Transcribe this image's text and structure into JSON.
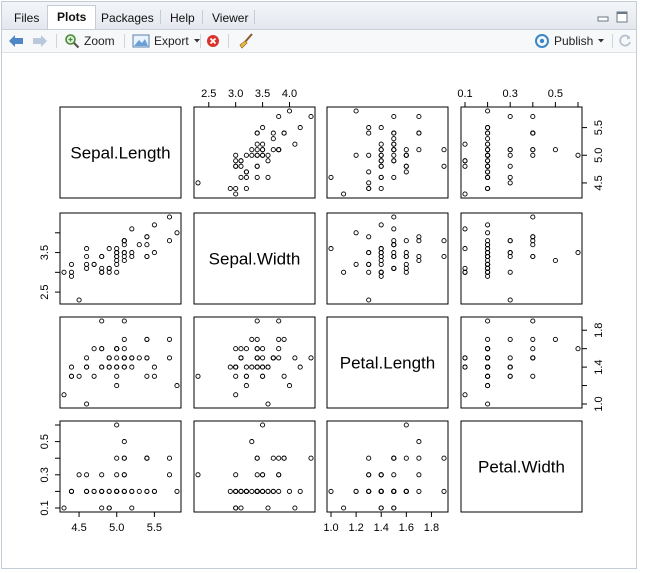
{
  "tabs": [
    {
      "label": "Files",
      "active": false
    },
    {
      "label": "Plots",
      "active": true
    },
    {
      "label": "Packages",
      "active": false
    },
    {
      "label": "Help",
      "active": false
    },
    {
      "label": "Viewer",
      "active": false
    }
  ],
  "toolbar": {
    "zoom_label": "Zoom",
    "export_label": "Export",
    "publish_label": "Publish"
  },
  "chart_data": {
    "type": "scatter",
    "subtype": "pairs-matrix",
    "variables": [
      "Sepal.Length",
      "Sepal.Width",
      "Petal.Length",
      "Petal.Width"
    ],
    "ranges": {
      "Sepal.Length": [
        4.3,
        5.8
      ],
      "Sepal.Width": [
        2.3,
        4.4
      ],
      "Petal.Length": [
        1.0,
        1.9
      ],
      "Petal.Width": [
        0.1,
        0.6
      ]
    },
    "ticks": {
      "Sepal.Length": {
        "values": [
          4.5,
          5.0,
          5.5
        ],
        "labels": [
          "4.5",
          "5.0",
          "5.5"
        ]
      },
      "Sepal.Width": {
        "values": [
          2.5,
          3.0,
          3.5,
          4.0
        ],
        "labels_top": [
          "2.5",
          "3.0",
          "3.5",
          "4.0"
        ],
        "labels_left": [
          "2.5",
          "3.5"
        ]
      },
      "Petal.Length": {
        "values": [
          1.0,
          1.2,
          1.4,
          1.6,
          1.8
        ],
        "labels_bottom": [
          "1.0",
          "1.2",
          "1.4",
          "1.6",
          "1.8"
        ],
        "labels_right": [
          "1.0",
          "1.4",
          "1.8"
        ]
      },
      "Petal.Width": {
        "values": [
          0.1,
          0.2,
          0.3,
          0.4,
          0.5,
          0.6
        ],
        "labels_top": [
          "0.1",
          "0.3",
          "0.5"
        ],
        "labels_left": [
          "0.1",
          "0.3",
          "0.5"
        ]
      }
    },
    "grid": false,
    "observations": [
      [
        5.1,
        3.5,
        1.4,
        0.2
      ],
      [
        4.9,
        3.0,
        1.4,
        0.2
      ],
      [
        4.7,
        3.2,
        1.3,
        0.2
      ],
      [
        4.6,
        3.1,
        1.5,
        0.2
      ],
      [
        5.0,
        3.6,
        1.4,
        0.2
      ],
      [
        5.4,
        3.9,
        1.7,
        0.4
      ],
      [
        4.6,
        3.4,
        1.4,
        0.3
      ],
      [
        5.0,
        3.4,
        1.5,
        0.2
      ],
      [
        4.4,
        2.9,
        1.4,
        0.2
      ],
      [
        4.9,
        3.1,
        1.5,
        0.1
      ],
      [
        5.4,
        3.7,
        1.5,
        0.2
      ],
      [
        4.8,
        3.4,
        1.6,
        0.2
      ],
      [
        4.8,
        3.0,
        1.4,
        0.1
      ],
      [
        4.3,
        3.0,
        1.1,
        0.1
      ],
      [
        5.8,
        4.0,
        1.2,
        0.2
      ],
      [
        5.7,
        4.4,
        1.5,
        0.4
      ],
      [
        5.4,
        3.9,
        1.3,
        0.4
      ],
      [
        5.1,
        3.5,
        1.4,
        0.3
      ],
      [
        5.7,
        3.8,
        1.7,
        0.3
      ],
      [
        5.1,
        3.8,
        1.5,
        0.3
      ],
      [
        5.4,
        3.4,
        1.7,
        0.2
      ],
      [
        5.1,
        3.7,
        1.5,
        0.4
      ],
      [
        4.6,
        3.6,
        1.0,
        0.2
      ],
      [
        5.1,
        3.3,
        1.7,
        0.5
      ],
      [
        4.8,
        3.4,
        1.9,
        0.2
      ],
      [
        5.0,
        3.0,
        1.6,
        0.2
      ],
      [
        5.0,
        3.4,
        1.6,
        0.4
      ],
      [
        5.2,
        3.5,
        1.5,
        0.2
      ],
      [
        5.2,
        3.4,
        1.4,
        0.2
      ],
      [
        4.7,
        3.2,
        1.6,
        0.2
      ],
      [
        4.8,
        3.1,
        1.6,
        0.2
      ],
      [
        5.4,
        3.4,
        1.5,
        0.4
      ],
      [
        5.2,
        4.1,
        1.5,
        0.1
      ],
      [
        5.5,
        4.2,
        1.4,
        0.2
      ],
      [
        4.9,
        3.1,
        1.5,
        0.2
      ],
      [
        5.0,
        3.2,
        1.2,
        0.2
      ],
      [
        5.5,
        3.5,
        1.3,
        0.2
      ],
      [
        4.9,
        3.6,
        1.4,
        0.1
      ],
      [
        4.4,
        3.0,
        1.3,
        0.2
      ],
      [
        5.1,
        3.4,
        1.5,
        0.2
      ],
      [
        5.0,
        3.5,
        1.3,
        0.3
      ],
      [
        4.5,
        2.3,
        1.3,
        0.3
      ],
      [
        4.4,
        3.2,
        1.3,
        0.2
      ],
      [
        5.0,
        3.5,
        1.6,
        0.6
      ],
      [
        5.1,
        3.8,
        1.9,
        0.4
      ],
      [
        4.8,
        3.0,
        1.4,
        0.3
      ],
      [
        5.1,
        3.8,
        1.6,
        0.2
      ],
      [
        4.6,
        3.2,
        1.4,
        0.2
      ],
      [
        5.3,
        3.7,
        1.5,
        0.2
      ],
      [
        5.0,
        3.3,
        1.4,
        0.2
      ]
    ]
  }
}
